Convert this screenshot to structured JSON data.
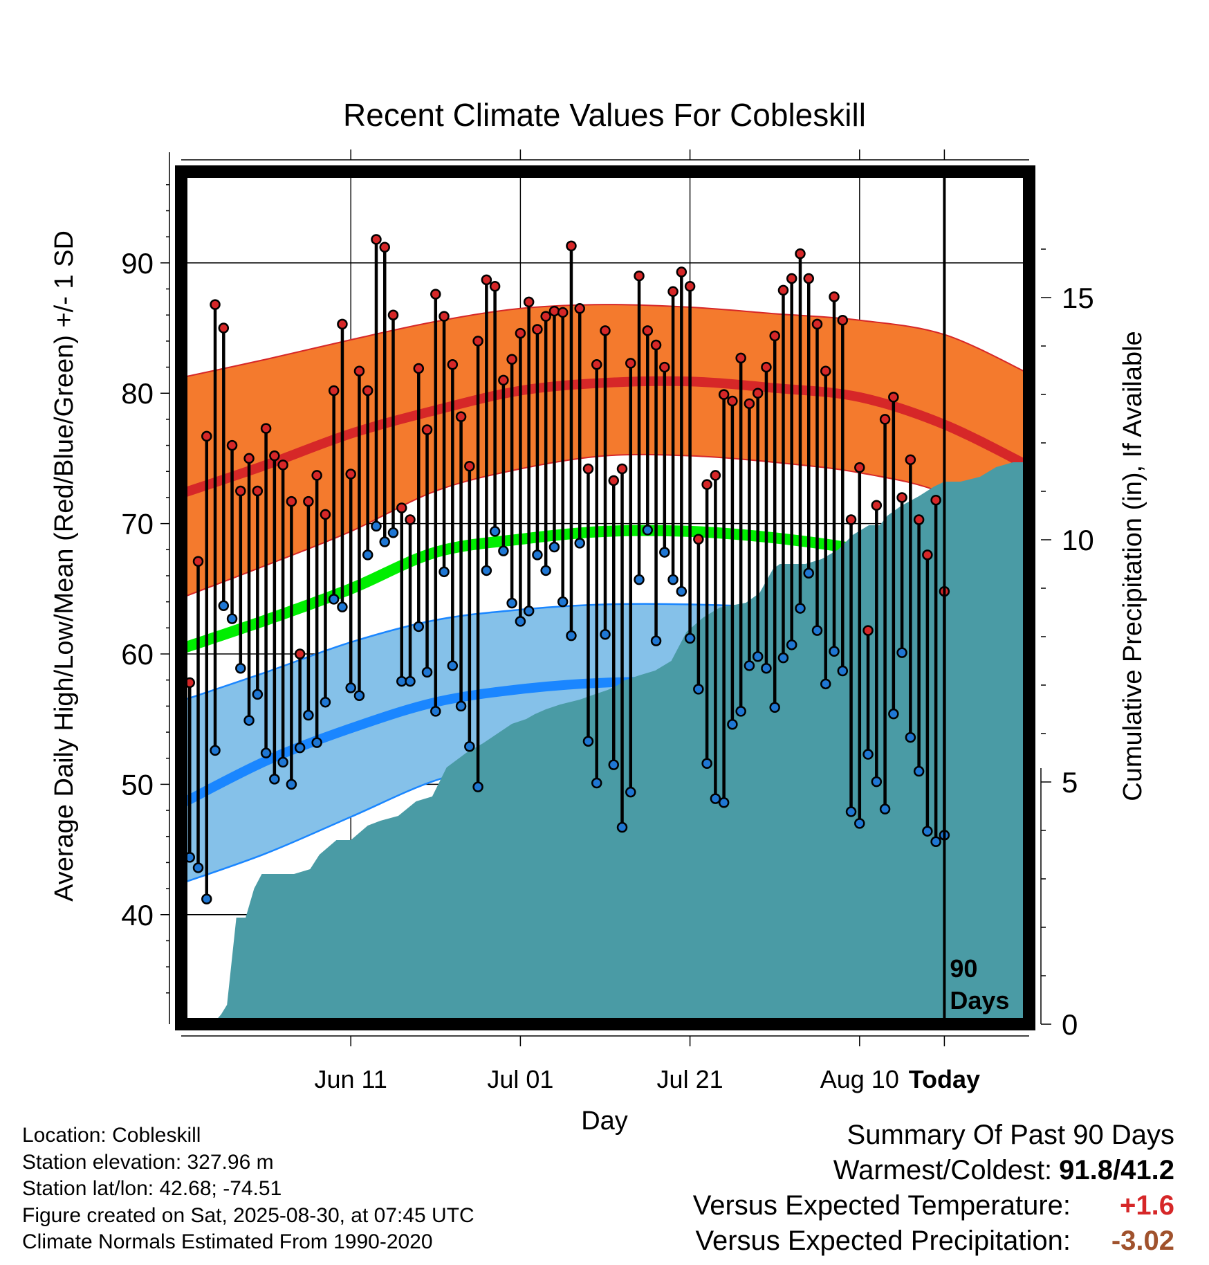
{
  "chart_data": {
    "type": "line",
    "title": "Recent Climate Values For Cobleskill",
    "xlabel": "Day",
    "ylabel": "Average Daily High/Low/Mean (Red/Blue/Green) +/- 1 SD",
    "y2label": "Cumulative Precipitation (in), If Available",
    "ylim": [
      31.6,
      97
    ],
    "y2lim": [
      0,
      17.6
    ],
    "xlim": [
      -10,
      90
    ],
    "yticks": [
      "40",
      "50",
      "60",
      "70",
      "80",
      "90"
    ],
    "y2ticks": [
      "0",
      "5",
      "10",
      "15"
    ],
    "xticks": [
      {
        "day": 10,
        "label": "Jun 11"
      },
      {
        "day": 30,
        "label": "Jul 01"
      },
      {
        "day": 50,
        "label": "Jul 21"
      },
      {
        "day": 70,
        "label": "Aug 10"
      },
      {
        "day": 80,
        "label": "Today"
      }
    ],
    "today_marker": {
      "day": 80,
      "label_line1": "90",
      "label_line2": "Days"
    },
    "grid": true,
    "normals": {
      "days": [
        -10,
        0,
        10,
        20,
        30,
        40,
        50,
        60,
        70,
        80,
        90
      ],
      "high_mean": [
        72.3,
        74.5,
        76.9,
        78.7,
        80.2,
        80.8,
        80.9,
        80.4,
        79.7,
        77.6,
        74.4
      ],
      "high_upper": [
        81.2,
        82.6,
        84.1,
        85.5,
        86.5,
        86.8,
        86.6,
        86.1,
        85.6,
        84.5,
        81.5
      ],
      "high_lower": [
        64.3,
        66.8,
        69.4,
        72.5,
        74.2,
        75.2,
        75.2,
        74.7,
        73.9,
        72.3,
        68.5
      ],
      "mean_mean": [
        60.4,
        62.6,
        65.0,
        67.8,
        68.8,
        69.4,
        69.4,
        68.9,
        68.0,
        66.5,
        62.7
      ],
      "low_mean": [
        48.5,
        51.8,
        54.3,
        56.3,
        57.3,
        57.8,
        57.8,
        57.2,
        56.0,
        54.4,
        50.9
      ],
      "low_upper": [
        56.4,
        58.6,
        60.9,
        62.6,
        63.4,
        63.8,
        63.8,
        63.5,
        62.6,
        60.8,
        58.5
      ],
      "low_lower": [
        42.4,
        44.7,
        47.5,
        50.3,
        51.9,
        52.3,
        52.3,
        51.6,
        49.9,
        47.8,
        44.7
      ]
    },
    "series": [
      {
        "name": "High",
        "color": "#d62728",
        "values": [
          57.8,
          67.1,
          76.7,
          86.8,
          85.0,
          76.0,
          72.5,
          75.0,
          72.5,
          77.3,
          75.2,
          74.5,
          71.7,
          60.0,
          71.7,
          73.7,
          70.7,
          80.2,
          85.3,
          73.8,
          81.7,
          80.2,
          91.8,
          91.2,
          86.0,
          71.2,
          70.3,
          81.9,
          77.2,
          87.6,
          85.9,
          82.2,
          78.2,
          74.4,
          84.0,
          88.7,
          88.2,
          81.0,
          82.6,
          84.6,
          87.0,
          84.9,
          85.9,
          86.3,
          86.2,
          91.3,
          86.5,
          74.2,
          82.2,
          84.8,
          73.3,
          74.2,
          82.3,
          89.0,
          84.8,
          83.7,
          82.0,
          87.8,
          89.3,
          88.2,
          68.8,
          73.0,
          73.7,
          79.9,
          79.4,
          82.7,
          79.2,
          80.0,
          82.0,
          84.4,
          87.9,
          88.8,
          90.7,
          88.8,
          85.3,
          81.7,
          87.4,
          85.6,
          70.3,
          74.3,
          61.8,
          71.4,
          78.0,
          79.7,
          72.0,
          74.9,
          70.3,
          67.6,
          71.8,
          64.8
        ]
      },
      {
        "name": "Low",
        "color": "#1f77d4",
        "values": [
          44.4,
          43.6,
          41.2,
          52.6,
          63.7,
          62.7,
          58.9,
          54.9,
          56.9,
          52.4,
          50.4,
          51.7,
          50.0,
          52.8,
          55.3,
          53.2,
          56.3,
          64.2,
          63.6,
          57.4,
          56.8,
          67.6,
          69.8,
          68.6,
          69.3,
          57.9,
          57.9,
          62.1,
          58.6,
          55.6,
          66.3,
          59.1,
          56.0,
          52.9,
          49.8,
          66.4,
          69.4,
          67.9,
          63.9,
          62.5,
          63.3,
          67.6,
          66.4,
          68.2,
          64.0,
          61.4,
          68.5,
          53.3,
          50.1,
          61.5,
          51.5,
          46.7,
          49.4,
          65.7,
          69.5,
          61.0,
          67.8,
          65.7,
          64.8,
          61.2,
          57.3,
          51.6,
          48.9,
          48.6,
          54.6,
          55.6,
          59.1,
          59.8,
          58.9,
          55.9,
          59.7,
          60.7,
          63.5,
          66.2,
          61.8,
          57.7,
          60.2,
          58.7,
          47.9,
          47.0,
          52.3,
          50.2,
          48.1,
          55.4,
          60.1,
          53.6,
          51.0,
          46.4,
          45.6,
          46.1
        ]
      },
      {
        "name": "Cumulative Precipitation",
        "color": "#4a9ba5",
        "days": [
          -10.0,
          -6.3,
          -5.3,
          -4.6,
          -3.5,
          -2.4,
          -1.4,
          -0.5,
          0.3,
          1.6,
          3.3,
          5.2,
          6.3,
          8.3,
          10.0,
          12.0,
          13.5,
          15.6,
          17.7,
          19.6,
          21.3,
          23.6,
          25.6,
          27.3,
          29.0,
          30.7,
          31.7,
          33.0,
          34.7,
          37.0,
          38.6,
          40.3,
          41.5,
          42.3,
          44.0,
          45.9,
          47.8,
          49.6,
          51.6,
          53.5,
          56.6,
          58.2,
          59.8,
          60.6,
          61.9,
          63.6,
          65.5,
          67.5,
          69.2,
          71.1,
          72.4,
          73.3,
          74.9,
          77.0,
          78.8,
          80.0,
          81.9,
          84.2,
          86.1,
          88.1,
          90.0
        ],
        "values": [
          0.0,
          0.0,
          0.2,
          0.4,
          2.2,
          2.2,
          2.8,
          3.1,
          3.1,
          3.1,
          3.1,
          3.2,
          3.5,
          3.8,
          3.8,
          4.1,
          4.2,
          4.3,
          4.6,
          4.7,
          5.3,
          5.6,
          5.8,
          6.0,
          6.2,
          6.3,
          6.4,
          6.5,
          6.6,
          6.7,
          6.8,
          6.9,
          7.0,
          7.1,
          7.2,
          7.3,
          7.5,
          8.1,
          8.4,
          8.6,
          8.7,
          8.9,
          9.4,
          9.5,
          9.5,
          9.5,
          9.6,
          9.8,
          10.1,
          10.3,
          10.3,
          10.5,
          10.7,
          10.9,
          11.1,
          11.2,
          11.2,
          11.3,
          11.5,
          11.6,
          11.6
        ]
      }
    ]
  },
  "info": {
    "location": "Location: Cobleskill",
    "elevation": "Station elevation: 327.96 m",
    "latlon": "Station lat/lon: 42.68; -74.51",
    "created": "Figure created on Sat, 2025-08-30, at 07:45 UTC",
    "normals": "Climate Normals Estimated From 1990-2020"
  },
  "summary": {
    "heading": "Summary Of Past 90 Days",
    "warmest_coldest_label": "Warmest/Coldest:",
    "warmest_coldest_value": "91.8/41.2",
    "temp_label": "Versus Expected Temperature:",
    "temp_value": "+1.6",
    "temp_color": "#d62728",
    "precip_label": "Versus Expected Precipitation:",
    "precip_value": "-3.02",
    "precip_color": "#a0522d"
  },
  "colors": {
    "high_band": "#f47a2d",
    "high_line": "#d62728",
    "mean_line": "#00ee00",
    "low_band": "#85c1e9",
    "low_line": "#1a86ff",
    "precip_fill": "#4a9ba5"
  }
}
